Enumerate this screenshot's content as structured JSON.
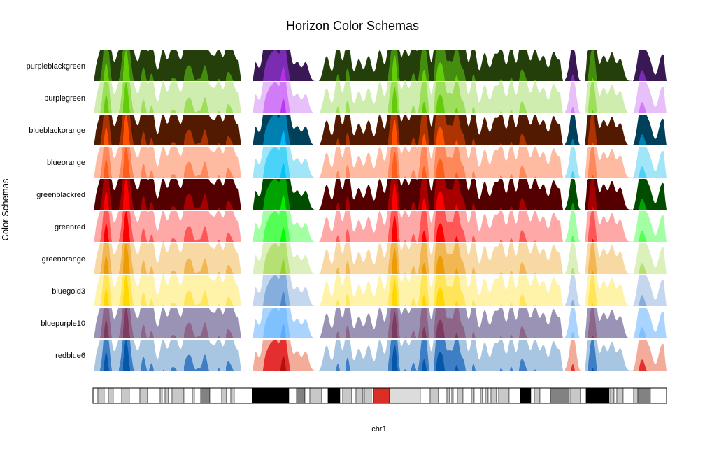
{
  "chart_data": {
    "type": "horizon",
    "title": "Horizon Color Schemas",
    "ylabel": "Color Schemas",
    "xlabel": "chr1",
    "x_domain": [
      0,
      820
    ],
    "bands": 3,
    "segments": [
      [
        0,
        212
      ],
      [
        228,
        318
      ],
      [
        322,
        672
      ],
      [
        674,
        697
      ],
      [
        702,
        771
      ],
      [
        771,
        820
      ]
    ],
    "signal_peaks": [
      [
        8,
        7
      ],
      [
        18,
        22
      ],
      [
        24,
        8
      ],
      [
        36,
        8
      ],
      [
        46,
        24
      ],
      [
        52,
        12
      ],
      [
        60,
        6
      ],
      [
        72,
        14
      ],
      [
        84,
        12
      ],
      [
        100,
        10
      ],
      [
        112,
        9
      ],
      [
        120,
        8
      ],
      [
        132,
        11
      ],
      [
        140,
        12
      ],
      [
        150,
        9
      ],
      [
        160,
        14
      ],
      [
        170,
        7
      ],
      [
        180,
        10
      ],
      [
        192,
        11
      ],
      [
        200,
        8
      ],
      [
        210,
        6
      ],
      [
        232,
        6
      ],
      [
        246,
        12
      ],
      [
        254,
        14
      ],
      [
        262,
        16
      ],
      [
        272,
        22
      ],
      [
        280,
        9
      ],
      [
        292,
        6
      ],
      [
        304,
        6
      ],
      [
        334,
        8
      ],
      [
        350,
        12
      ],
      [
        364,
        14
      ],
      [
        380,
        7
      ],
      [
        394,
        8
      ],
      [
        410,
        10
      ],
      [
        424,
        11
      ],
      [
        432,
        26
      ],
      [
        446,
        10
      ],
      [
        458,
        12
      ],
      [
        470,
        14
      ],
      [
        476,
        16
      ],
      [
        492,
        20
      ],
      [
        500,
        20
      ],
      [
        510,
        14
      ],
      [
        520,
        20
      ],
      [
        530,
        12
      ],
      [
        544,
        12
      ],
      [
        560,
        9
      ],
      [
        574,
        8
      ],
      [
        584,
        10
      ],
      [
        598,
        11
      ],
      [
        612,
        12
      ],
      [
        620,
        8
      ],
      [
        632,
        10
      ],
      [
        644,
        8
      ],
      [
        658,
        9
      ],
      [
        668,
        6
      ],
      [
        686,
        12
      ],
      [
        710,
        10
      ],
      [
        716,
        16
      ],
      [
        730,
        8
      ],
      [
        742,
        9
      ],
      [
        754,
        7
      ],
      [
        782,
        9
      ],
      [
        788,
        8
      ],
      [
        796,
        6
      ],
      [
        812,
        6
      ],
      [
        818,
        5
      ]
    ],
    "schemas": [
      {
        "name": "purpleblackgreen",
        "pos": [
          "#243f09",
          "#448d0e",
          "#63cc09"
        ],
        "neg": [
          "#3a1856",
          "#7a2cb3",
          "#b52ee8"
        ]
      },
      {
        "name": "purplegreen",
        "pos": [
          "#cfedaf",
          "#9ddf5b",
          "#61cc07"
        ],
        "neg": [
          "#e7c0fa",
          "#d27bf8",
          "#bb36f0"
        ]
      },
      {
        "name": "blueblackorange",
        "pos": [
          "#521a00",
          "#ad3300",
          "#ff5100"
        ],
        "neg": [
          "#00405a",
          "#0080b0",
          "#00bbff"
        ]
      },
      {
        "name": "blueorange",
        "pos": [
          "#ffbba2",
          "#fe885a",
          "#fd5e1b"
        ],
        "neg": [
          "#a0e6f8",
          "#4ad3f9",
          "#05c4f8"
        ]
      },
      {
        "name": "greenblackred",
        "pos": [
          "#550000",
          "#a80000",
          "#ff0000"
        ],
        "neg": [
          "#004d00",
          "#00a300",
          "#00f000"
        ]
      },
      {
        "name": "greenred",
        "pos": [
          "#ffa8a8",
          "#ff5656",
          "#ff0000"
        ],
        "neg": [
          "#a3ffa3",
          "#53ff53",
          "#00ff00"
        ]
      },
      {
        "name": "greenorange",
        "pos": [
          "#f8d9a4",
          "#f2b752",
          "#ed9c04"
        ],
        "neg": [
          "#dcf0bc",
          "#b5e073",
          "#92d32d"
        ]
      },
      {
        "name": "bluegold3",
        "pos": [
          "#fff3aa",
          "#ffe557",
          "#ffd800"
        ],
        "neg": [
          "#c4d7ee",
          "#86aedc",
          "#4b87cb"
        ]
      },
      {
        "name": "bluepurple10",
        "pos": [
          "#9b93b6",
          "#8e6488",
          "#7d3b62"
        ],
        "neg": [
          "#a8d4ff",
          "#7fc1ff",
          "#59acff"
        ]
      },
      {
        "name": "redblue6",
        "pos": [
          "#a8c6e1",
          "#3d7ec5",
          "#0557a9"
        ],
        "neg": [
          "#f3ab9a",
          "#e52f2f",
          "#b01111"
        ]
      }
    ],
    "ideogram": {
      "chromosome": "chr1",
      "length": 820,
      "bands": [
        {
          "start": 0,
          "end": 7,
          "stain": "gneg"
        },
        {
          "start": 7,
          "end": 16,
          "stain": "gpos25"
        },
        {
          "start": 16,
          "end": 22,
          "stain": "gneg"
        },
        {
          "start": 22,
          "end": 29,
          "stain": "gpos25"
        },
        {
          "start": 29,
          "end": 41,
          "stain": "gneg"
        },
        {
          "start": 41,
          "end": 52,
          "stain": "gpos25"
        },
        {
          "start": 52,
          "end": 67,
          "stain": "gneg"
        },
        {
          "start": 67,
          "end": 78,
          "stain": "gpos25"
        },
        {
          "start": 78,
          "end": 96,
          "stain": "gneg"
        },
        {
          "start": 96,
          "end": 99,
          "stain": "gpos25"
        },
        {
          "start": 99,
          "end": 103,
          "stain": "gneg"
        },
        {
          "start": 103,
          "end": 108,
          "stain": "gpos50"
        },
        {
          "start": 108,
          "end": 113,
          "stain": "gneg"
        },
        {
          "start": 113,
          "end": 130,
          "stain": "gpos25"
        },
        {
          "start": 130,
          "end": 142,
          "stain": "gneg"
        },
        {
          "start": 142,
          "end": 145,
          "stain": "gpos25"
        },
        {
          "start": 145,
          "end": 154,
          "stain": "gneg"
        },
        {
          "start": 154,
          "end": 167,
          "stain": "gpos75"
        },
        {
          "start": 167,
          "end": 184,
          "stain": "gneg"
        },
        {
          "start": 184,
          "end": 191,
          "stain": "gpos25"
        },
        {
          "start": 191,
          "end": 197,
          "stain": "gneg"
        },
        {
          "start": 197,
          "end": 202,
          "stain": "gpos25"
        },
        {
          "start": 202,
          "end": 228,
          "stain": "gneg"
        },
        {
          "start": 228,
          "end": 280,
          "stain": "gpos100"
        },
        {
          "start": 280,
          "end": 291,
          "stain": "gneg"
        },
        {
          "start": 291,
          "end": 303,
          "stain": "gpos75"
        },
        {
          "start": 303,
          "end": 310,
          "stain": "gneg"
        },
        {
          "start": 310,
          "end": 327,
          "stain": "gpos50"
        },
        {
          "start": 327,
          "end": 336,
          "stain": "gneg"
        },
        {
          "start": 336,
          "end": 353,
          "stain": "gpos100"
        },
        {
          "start": 353,
          "end": 357,
          "stain": "gneg"
        },
        {
          "start": 357,
          "end": 370,
          "stain": "gpos25"
        },
        {
          "start": 370,
          "end": 376,
          "stain": "gneg"
        },
        {
          "start": 376,
          "end": 386,
          "stain": "gpos25"
        },
        {
          "start": 386,
          "end": 388,
          "stain": "gneg"
        },
        {
          "start": 388,
          "end": 398,
          "stain": "gpos50"
        },
        {
          "start": 398,
          "end": 401,
          "stain": "gneg"
        },
        {
          "start": 401,
          "end": 424,
          "stain": "acen"
        },
        {
          "start": 424,
          "end": 468,
          "stain": "gvar"
        },
        {
          "start": 468,
          "end": 482,
          "stain": "gneg"
        },
        {
          "start": 482,
          "end": 494,
          "stain": "gpos25"
        },
        {
          "start": 494,
          "end": 506,
          "stain": "gneg"
        },
        {
          "start": 506,
          "end": 510,
          "stain": "gpos25"
        },
        {
          "start": 510,
          "end": 513,
          "stain": "gneg"
        },
        {
          "start": 513,
          "end": 515,
          "stain": "gpos25"
        },
        {
          "start": 515,
          "end": 521,
          "stain": "gneg"
        },
        {
          "start": 521,
          "end": 529,
          "stain": "gpos25"
        },
        {
          "start": 529,
          "end": 541,
          "stain": "gneg"
        },
        {
          "start": 541,
          "end": 545,
          "stain": "gpos25"
        },
        {
          "start": 545,
          "end": 554,
          "stain": "gneg"
        },
        {
          "start": 554,
          "end": 557,
          "stain": "gpos25"
        },
        {
          "start": 557,
          "end": 561,
          "stain": "gneg"
        },
        {
          "start": 561,
          "end": 565,
          "stain": "gpos50"
        },
        {
          "start": 565,
          "end": 569,
          "stain": "gneg"
        },
        {
          "start": 569,
          "end": 577,
          "stain": "gpos25"
        },
        {
          "start": 577,
          "end": 580,
          "stain": "gneg"
        },
        {
          "start": 580,
          "end": 595,
          "stain": "gpos25"
        },
        {
          "start": 595,
          "end": 611,
          "stain": "gneg"
        },
        {
          "start": 611,
          "end": 626,
          "stain": "gpos100"
        },
        {
          "start": 626,
          "end": 631,
          "stain": "gneg"
        },
        {
          "start": 631,
          "end": 639,
          "stain": "gpos25"
        },
        {
          "start": 639,
          "end": 654,
          "stain": "gneg"
        },
        {
          "start": 654,
          "end": 681,
          "stain": "gpos75"
        },
        {
          "start": 681,
          "end": 683,
          "stain": "gneg"
        },
        {
          "start": 683,
          "end": 697,
          "stain": "gpos25"
        },
        {
          "start": 697,
          "end": 705,
          "stain": "gneg"
        },
        {
          "start": 705,
          "end": 738,
          "stain": "gpos100"
        },
        {
          "start": 738,
          "end": 740,
          "stain": "gneg"
        },
        {
          "start": 740,
          "end": 745,
          "stain": "gpos25"
        },
        {
          "start": 745,
          "end": 749,
          "stain": "gneg"
        },
        {
          "start": 749,
          "end": 758,
          "stain": "gpos25"
        },
        {
          "start": 758,
          "end": 773,
          "stain": "gneg"
        },
        {
          "start": 773,
          "end": 779,
          "stain": "gpos25"
        },
        {
          "start": 779,
          "end": 797,
          "stain": "gpos75"
        },
        {
          "start": 797,
          "end": 820,
          "stain": "gneg"
        }
      ]
    },
    "stain_colors": {
      "gneg": "#ffffff",
      "gpos25": "#c8c8c8",
      "gpos50": "#c8c8c8",
      "gpos75": "#828282",
      "gpos100": "#000000",
      "gvar": "#dcdcdc",
      "acen": "#d92f27"
    }
  }
}
